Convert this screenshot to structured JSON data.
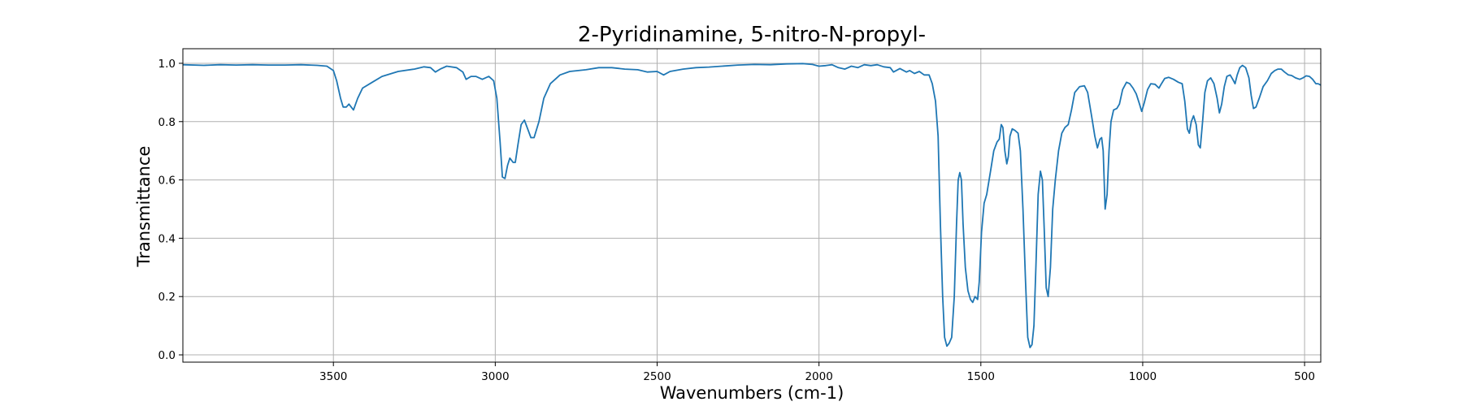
{
  "chart_data": {
    "type": "line",
    "title": "2-Pyridinamine, 5-nitro-N-propyl-",
    "xlabel": "Wavenumbers (cm-1)",
    "ylabel": "Transmittance",
    "xlim": [
      3965,
      450
    ],
    "ylim": [
      -0.025,
      1.05
    ],
    "x_reversed": true,
    "grid": true,
    "xticks": [
      3500,
      3000,
      2500,
      2000,
      1500,
      1000,
      500
    ],
    "yticks": [
      0.0,
      0.2,
      0.4,
      0.6,
      0.8,
      1.0
    ],
    "xtick_labels": [
      "3500",
      "3000",
      "2500",
      "2000",
      "1500",
      "1000",
      "500"
    ],
    "ytick_labels": [
      "0.0",
      "0.2",
      "0.4",
      "0.6",
      "0.8",
      "1.0"
    ],
    "series": [
      {
        "color": "#1f77b4",
        "points": [
          [
            3965,
            0.995
          ],
          [
            3900,
            0.993
          ],
          [
            3850,
            0.995
          ],
          [
            3800,
            0.994
          ],
          [
            3750,
            0.995
          ],
          [
            3700,
            0.994
          ],
          [
            3650,
            0.994
          ],
          [
            3600,
            0.995
          ],
          [
            3550,
            0.993
          ],
          [
            3520,
            0.99
          ],
          [
            3500,
            0.975
          ],
          [
            3490,
            0.94
          ],
          [
            3478,
            0.88
          ],
          [
            3470,
            0.85
          ],
          [
            3460,
            0.85
          ],
          [
            3452,
            0.86
          ],
          [
            3445,
            0.85
          ],
          [
            3438,
            0.84
          ],
          [
            3425,
            0.88
          ],
          [
            3410,
            0.915
          ],
          [
            3380,
            0.935
          ],
          [
            3350,
            0.955
          ],
          [
            3300,
            0.972
          ],
          [
            3250,
            0.98
          ],
          [
            3220,
            0.988
          ],
          [
            3200,
            0.985
          ],
          [
            3185,
            0.97
          ],
          [
            3170,
            0.98
          ],
          [
            3150,
            0.99
          ],
          [
            3120,
            0.985
          ],
          [
            3100,
            0.97
          ],
          [
            3090,
            0.945
          ],
          [
            3075,
            0.955
          ],
          [
            3060,
            0.955
          ],
          [
            3040,
            0.945
          ],
          [
            3020,
            0.955
          ],
          [
            3005,
            0.94
          ],
          [
            2995,
            0.88
          ],
          [
            2985,
            0.73
          ],
          [
            2978,
            0.61
          ],
          [
            2970,
            0.605
          ],
          [
            2962,
            0.65
          ],
          [
            2955,
            0.675
          ],
          [
            2945,
            0.66
          ],
          [
            2938,
            0.66
          ],
          [
            2930,
            0.72
          ],
          [
            2920,
            0.79
          ],
          [
            2910,
            0.805
          ],
          [
            2900,
            0.775
          ],
          [
            2890,
            0.745
          ],
          [
            2880,
            0.745
          ],
          [
            2865,
            0.8
          ],
          [
            2850,
            0.88
          ],
          [
            2830,
            0.93
          ],
          [
            2800,
            0.96
          ],
          [
            2770,
            0.972
          ],
          [
            2720,
            0.978
          ],
          [
            2680,
            0.985
          ],
          [
            2640,
            0.985
          ],
          [
            2600,
            0.98
          ],
          [
            2560,
            0.978
          ],
          [
            2530,
            0.97
          ],
          [
            2500,
            0.972
          ],
          [
            2480,
            0.96
          ],
          [
            2460,
            0.972
          ],
          [
            2420,
            0.98
          ],
          [
            2380,
            0.985
          ],
          [
            2340,
            0.987
          ],
          [
            2300,
            0.99
          ],
          [
            2250,
            0.994
          ],
          [
            2200,
            0.996
          ],
          [
            2150,
            0.995
          ],
          [
            2100,
            0.998
          ],
          [
            2050,
            0.999
          ],
          [
            2020,
            0.996
          ],
          [
            2000,
            0.99
          ],
          [
            1980,
            0.992
          ],
          [
            1960,
            0.995
          ],
          [
            1940,
            0.985
          ],
          [
            1920,
            0.98
          ],
          [
            1900,
            0.99
          ],
          [
            1880,
            0.985
          ],
          [
            1860,
            0.995
          ],
          [
            1840,
            0.992
          ],
          [
            1820,
            0.995
          ],
          [
            1800,
            0.988
          ],
          [
            1780,
            0.985
          ],
          [
            1770,
            0.97
          ],
          [
            1750,
            0.982
          ],
          [
            1730,
            0.97
          ],
          [
            1720,
            0.975
          ],
          [
            1705,
            0.965
          ],
          [
            1690,
            0.972
          ],
          [
            1675,
            0.96
          ],
          [
            1660,
            0.96
          ],
          [
            1650,
            0.93
          ],
          [
            1640,
            0.87
          ],
          [
            1632,
            0.75
          ],
          [
            1625,
            0.45
          ],
          [
            1618,
            0.2
          ],
          [
            1612,
            0.06
          ],
          [
            1605,
            0.03
          ],
          [
            1598,
            0.04
          ],
          [
            1590,
            0.06
          ],
          [
            1582,
            0.2
          ],
          [
            1575,
            0.45
          ],
          [
            1570,
            0.6
          ],
          [
            1565,
            0.625
          ],
          [
            1560,
            0.6
          ],
          [
            1555,
            0.45
          ],
          [
            1548,
            0.3
          ],
          [
            1540,
            0.22
          ],
          [
            1532,
            0.19
          ],
          [
            1525,
            0.18
          ],
          [
            1518,
            0.2
          ],
          [
            1510,
            0.19
          ],
          [
            1505,
            0.25
          ],
          [
            1498,
            0.42
          ],
          [
            1490,
            0.52
          ],
          [
            1482,
            0.55
          ],
          [
            1470,
            0.63
          ],
          [
            1460,
            0.7
          ],
          [
            1450,
            0.73
          ],
          [
            1443,
            0.74
          ],
          [
            1437,
            0.79
          ],
          [
            1432,
            0.78
          ],
          [
            1426,
            0.7
          ],
          [
            1420,
            0.655
          ],
          [
            1415,
            0.68
          ],
          [
            1410,
            0.75
          ],
          [
            1403,
            0.775
          ],
          [
            1395,
            0.77
          ],
          [
            1385,
            0.76
          ],
          [
            1378,
            0.7
          ],
          [
            1370,
            0.5
          ],
          [
            1362,
            0.25
          ],
          [
            1355,
            0.06
          ],
          [
            1348,
            0.025
          ],
          [
            1342,
            0.035
          ],
          [
            1336,
            0.1
          ],
          [
            1330,
            0.3
          ],
          [
            1323,
            0.55
          ],
          [
            1316,
            0.63
          ],
          [
            1310,
            0.6
          ],
          [
            1304,
            0.42
          ],
          [
            1298,
            0.23
          ],
          [
            1292,
            0.2
          ],
          [
            1285,
            0.3
          ],
          [
            1278,
            0.5
          ],
          [
            1270,
            0.6
          ],
          [
            1260,
            0.7
          ],
          [
            1250,
            0.76
          ],
          [
            1240,
            0.78
          ],
          [
            1230,
            0.79
          ],
          [
            1220,
            0.84
          ],
          [
            1210,
            0.9
          ],
          [
            1195,
            0.92
          ],
          [
            1180,
            0.923
          ],
          [
            1170,
            0.9
          ],
          [
            1158,
            0.82
          ],
          [
            1148,
            0.75
          ],
          [
            1140,
            0.71
          ],
          [
            1132,
            0.74
          ],
          [
            1127,
            0.745
          ],
          [
            1122,
            0.7
          ],
          [
            1116,
            0.5
          ],
          [
            1110,
            0.55
          ],
          [
            1104,
            0.7
          ],
          [
            1098,
            0.8
          ],
          [
            1090,
            0.84
          ],
          [
            1080,
            0.845
          ],
          [
            1072,
            0.86
          ],
          [
            1062,
            0.91
          ],
          [
            1050,
            0.935
          ],
          [
            1040,
            0.93
          ],
          [
            1030,
            0.915
          ],
          [
            1020,
            0.895
          ],
          [
            1010,
            0.86
          ],
          [
            1003,
            0.835
          ],
          [
            995,
            0.865
          ],
          [
            985,
            0.91
          ],
          [
            975,
            0.93
          ],
          [
            962,
            0.928
          ],
          [
            950,
            0.915
          ],
          [
            942,
            0.93
          ],
          [
            932,
            0.948
          ],
          [
            920,
            0.952
          ],
          [
            905,
            0.945
          ],
          [
            890,
            0.935
          ],
          [
            878,
            0.93
          ],
          [
            870,
            0.87
          ],
          [
            862,
            0.775
          ],
          [
            856,
            0.76
          ],
          [
            850,
            0.8
          ],
          [
            843,
            0.82
          ],
          [
            835,
            0.79
          ],
          [
            828,
            0.72
          ],
          [
            822,
            0.71
          ],
          [
            815,
            0.8
          ],
          [
            808,
            0.9
          ],
          [
            800,
            0.94
          ],
          [
            790,
            0.95
          ],
          [
            780,
            0.93
          ],
          [
            770,
            0.88
          ],
          [
            763,
            0.83
          ],
          [
            756,
            0.86
          ],
          [
            748,
            0.92
          ],
          [
            740,
            0.955
          ],
          [
            730,
            0.96
          ],
          [
            722,
            0.945
          ],
          [
            715,
            0.93
          ],
          [
            708,
            0.96
          ],
          [
            700,
            0.985
          ],
          [
            692,
            0.993
          ],
          [
            682,
            0.985
          ],
          [
            672,
            0.95
          ],
          [
            665,
            0.89
          ],
          [
            658,
            0.845
          ],
          [
            650,
            0.85
          ],
          [
            640,
            0.88
          ],
          [
            628,
            0.92
          ],
          [
            615,
            0.94
          ],
          [
            603,
            0.965
          ],
          [
            592,
            0.975
          ],
          [
            582,
            0.98
          ],
          [
            572,
            0.98
          ],
          [
            562,
            0.97
          ],
          [
            550,
            0.96
          ],
          [
            540,
            0.958
          ],
          [
            528,
            0.95
          ],
          [
            515,
            0.945
          ],
          [
            505,
            0.95
          ],
          [
            495,
            0.957
          ],
          [
            485,
            0.955
          ],
          [
            475,
            0.945
          ],
          [
            465,
            0.93
          ],
          [
            458,
            0.93
          ],
          [
            450,
            0.925
          ]
        ]
      }
    ]
  }
}
